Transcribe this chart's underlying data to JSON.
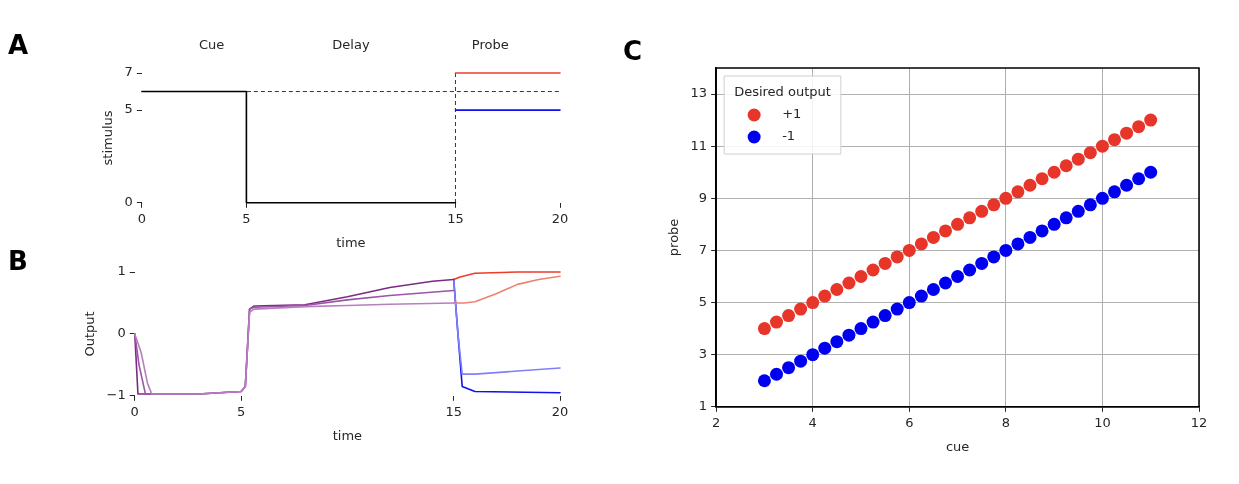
{
  "chart_data": [
    {
      "type": "line",
      "title": "A",
      "xlabel": "time",
      "ylabel": "stimulus",
      "annotations": [
        "Cue",
        "Delay",
        "Probe"
      ],
      "xlim": [
        0,
        20
      ],
      "ylim": [
        0,
        7
      ],
      "xticks": [
        0,
        5,
        15,
        20
      ],
      "yticks": [
        0,
        5,
        7
      ],
      "grid": false,
      "legend": false,
      "marker": "none",
      "ref_lines": [
        {
          "axis": "y",
          "value": 6,
          "color": "#000000",
          "line_style": "dashed"
        },
        {
          "axis": "x",
          "value": 15,
          "color": "#000000",
          "line_style": "dashed"
        }
      ],
      "series": [
        {
          "color": "#000000",
          "x": [
            0,
            5,
            5,
            15
          ],
          "values": [
            6,
            6,
            0,
            0
          ]
        },
        {
          "color": "#f03c2c",
          "x": [
            15,
            20
          ],
          "values": [
            7,
            7
          ]
        },
        {
          "color": "#1010f0",
          "x": [
            15,
            20
          ],
          "values": [
            5,
            5
          ]
        }
      ]
    },
    {
      "type": "line",
      "title": "B",
      "xlabel": "time",
      "ylabel": "Output",
      "xlim": [
        0,
        20
      ],
      "ylim": [
        -1,
        1
      ],
      "xticks": [
        0,
        5,
        15,
        20
      ],
      "yticks": [
        {
          "value": -1,
          "label": "−1"
        },
        0,
        1
      ],
      "grid": false,
      "legend": false,
      "marker": "none",
      "series": [
        {
          "color": "#b77fc0",
          "x": [
            0,
            0.3,
            0.6,
            0.8,
            3,
            5,
            5.2,
            5.4,
            5.6,
            8,
            10,
            12,
            15
          ],
          "values": [
            0,
            -0.3,
            -0.8,
            -0.97,
            -0.97,
            -0.93,
            -0.85,
            0.35,
            0.4,
            0.44,
            0.46,
            0.48,
            0.5
          ]
        },
        {
          "color": "#9a55a5",
          "x": [
            0,
            0.2,
            0.5,
            3,
            5,
            5.2,
            5.4,
            5.6,
            8,
            10,
            12,
            15
          ],
          "values": [
            0,
            -0.5,
            -0.97,
            -0.97,
            -0.93,
            -0.85,
            0.4,
            0.43,
            0.46,
            0.55,
            0.62,
            0.7
          ]
        },
        {
          "color": "#7b2a85",
          "x": [
            0,
            0.15,
            0.7,
            3,
            5,
            5.2,
            5.4,
            5.6,
            8,
            10,
            12,
            14,
            15
          ],
          "values": [
            0,
            -0.97,
            -0.97,
            -0.97,
            -0.93,
            -0.85,
            0.4,
            0.45,
            0.47,
            0.6,
            0.75,
            0.85,
            0.88
          ]
        },
        {
          "color": "#f08070",
          "x": [
            15,
            15.5,
            16,
            17,
            18,
            19,
            20
          ],
          "values": [
            0.5,
            0.5,
            0.52,
            0.65,
            0.8,
            0.88,
            0.93
          ]
        },
        {
          "color": "#ee3a2b",
          "x": [
            15,
            15.3,
            16,
            18,
            20
          ],
          "values": [
            0.88,
            0.92,
            0.98,
            1,
            1
          ]
        },
        {
          "color": "#8080f8",
          "x": [
            15,
            15.2,
            15.4,
            16,
            18,
            20
          ],
          "values": [
            0.88,
            0,
            -0.65,
            -0.65,
            -0.6,
            -0.55
          ]
        },
        {
          "color": "#1010f0",
          "x": [
            15,
            15.2,
            15.4,
            16,
            20
          ],
          "values": [
            0.88,
            0,
            -0.85,
            -0.93,
            -0.95
          ]
        }
      ]
    },
    {
      "type": "scatter",
      "title": "C",
      "xlabel": "cue",
      "ylabel": "probe",
      "legend_title": "Desired output",
      "legend": "top left",
      "grid": true,
      "marker": "circle",
      "xlim": [
        2,
        12
      ],
      "ylim": [
        1,
        14
      ],
      "xticks": [
        2,
        4,
        6,
        8,
        10,
        12
      ],
      "yticks": [
        1,
        3,
        5,
        7,
        9,
        11,
        13
      ],
      "x": [
        3,
        3.25,
        3.5,
        3.75,
        4,
        4.25,
        4.5,
        4.75,
        5,
        5.25,
        5.5,
        5.75,
        6,
        6.25,
        6.5,
        6.75,
        7,
        7.25,
        7.5,
        7.75,
        8,
        8.25,
        8.5,
        8.75,
        9,
        9.25,
        9.5,
        9.75,
        10,
        10.25,
        10.5,
        10.75,
        11
      ],
      "series": [
        {
          "name": "+1",
          "color": "#e8352a",
          "values": [
            4,
            4.25,
            4.5,
            4.75,
            5,
            5.25,
            5.5,
            5.75,
            6,
            6.25,
            6.5,
            6.75,
            7,
            7.25,
            7.5,
            7.75,
            8,
            8.25,
            8.5,
            8.75,
            9,
            9.25,
            9.5,
            9.75,
            10,
            10.25,
            10.5,
            10.75,
            11,
            11.25,
            11.5,
            11.75,
            12
          ]
        },
        {
          "name": "-1",
          "color": "#0000f0",
          "values": [
            2,
            2.25,
            2.5,
            2.75,
            3,
            3.25,
            3.5,
            3.75,
            4,
            4.25,
            4.5,
            4.75,
            5,
            5.25,
            5.5,
            5.75,
            6,
            6.25,
            6.5,
            6.75,
            7,
            7.25,
            7.5,
            7.75,
            8,
            8.25,
            8.5,
            8.75,
            9,
            9.25,
            9.5,
            9.75,
            10
          ]
        }
      ]
    }
  ]
}
